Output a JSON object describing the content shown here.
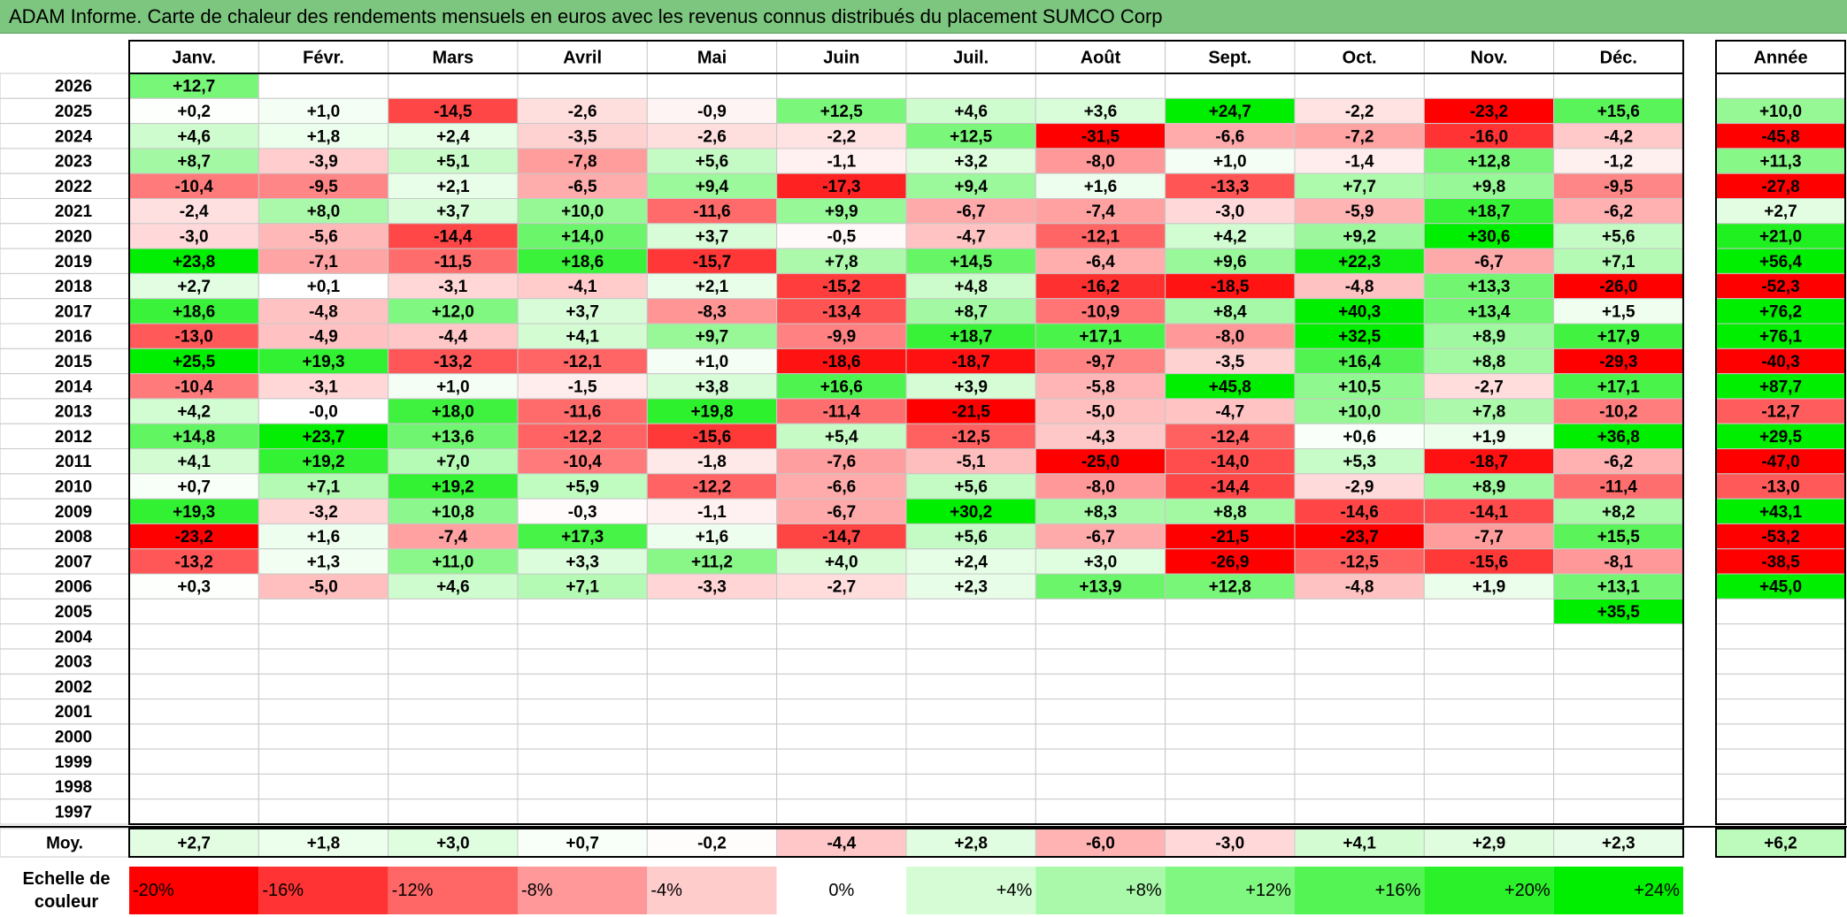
{
  "title": "ADAM Informe. Carte de chaleur des rendements mensuels en euros avec les revenus connus distribués du placement SUMCO Corp",
  "labels": {
    "year_column": "Année",
    "average_row": "Moy.",
    "scale_label_line1": "Echelle de",
    "scale_label_line2": "couleur"
  },
  "color_scale": {
    "min_color": "#ff0000",
    "mid_color": "#ffffff",
    "max_color": "#00ee00",
    "min_value": -20,
    "max_value": 24,
    "labels": [
      "-20%",
      "-16%",
      "-12%",
      "-8%",
      "-4%",
      "0%",
      "+4%",
      "+8%",
      "+12%",
      "+16%",
      "+20%",
      "+24%"
    ],
    "values": [
      -20,
      -16,
      -12,
      -8,
      -4,
      0,
      4,
      8,
      12,
      16,
      20,
      24
    ]
  },
  "chart_data": {
    "type": "heatmap",
    "title": "ADAM Informe. Carte de chaleur des rendements mensuels en euros avec les revenus connus distribués du placement SUMCO Corp",
    "columns": [
      "Janv.",
      "Févr.",
      "Mars",
      "Avril",
      "Mai",
      "Juin",
      "Juil.",
      "Août",
      "Sept.",
      "Oct.",
      "Nov.",
      "Déc."
    ],
    "rows": [
      {
        "year": "2026",
        "values": [
          "+12,7",
          "",
          "",
          "",
          "",
          "",
          "",
          "",
          "",
          "",
          "",
          ""
        ],
        "annual": ""
      },
      {
        "year": "2025",
        "values": [
          "+0,2",
          "+1,0",
          "-14,5",
          "-2,6",
          "-0,9",
          "+12,5",
          "+4,6",
          "+3,6",
          "+24,7",
          "-2,2",
          "-23,2",
          "+15,6"
        ],
        "annual": "+10,0"
      },
      {
        "year": "2024",
        "values": [
          "+4,6",
          "+1,8",
          "+2,4",
          "-3,5",
          "-2,6",
          "-2,2",
          "+12,5",
          "-31,5",
          "-6,6",
          "-7,2",
          "-16,0",
          "-4,2"
        ],
        "annual": "-45,8"
      },
      {
        "year": "2023",
        "values": [
          "+8,7",
          "-3,9",
          "+5,1",
          "-7,8",
          "+5,6",
          "-1,1",
          "+3,2",
          "-8,0",
          "+1,0",
          "-1,4",
          "+12,8",
          "-1,2"
        ],
        "annual": "+11,3"
      },
      {
        "year": "2022",
        "values": [
          "-10,4",
          "-9,5",
          "+2,1",
          "-6,5",
          "+9,4",
          "-17,3",
          "+9,4",
          "+1,6",
          "-13,3",
          "+7,7",
          "+9,8",
          "-9,5"
        ],
        "annual": "-27,8"
      },
      {
        "year": "2021",
        "values": [
          "-2,4",
          "+8,0",
          "+3,7",
          "+10,0",
          "-11,6",
          "+9,9",
          "-6,7",
          "-7,4",
          "-3,0",
          "-5,9",
          "+18,7",
          "-6,2"
        ],
        "annual": "+2,7"
      },
      {
        "year": "2020",
        "values": [
          "-3,0",
          "-5,6",
          "-14,4",
          "+14,0",
          "+3,7",
          "-0,5",
          "-4,7",
          "-12,1",
          "+4,2",
          "+9,2",
          "+30,6",
          "+5,6"
        ],
        "annual": "+21,0"
      },
      {
        "year": "2019",
        "values": [
          "+23,8",
          "-7,1",
          "-11,5",
          "+18,6",
          "-15,7",
          "+7,8",
          "+14,5",
          "-6,4",
          "+9,6",
          "+22,3",
          "-6,7",
          "+7,1"
        ],
        "annual": "+56,4"
      },
      {
        "year": "2018",
        "values": [
          "+2,7",
          "+0,1",
          "-3,1",
          "-4,1",
          "+2,1",
          "-15,2",
          "+4,8",
          "-16,2",
          "-18,5",
          "-4,8",
          "+13,3",
          "-26,0"
        ],
        "annual": "-52,3"
      },
      {
        "year": "2017",
        "values": [
          "+18,6",
          "-4,8",
          "+12,0",
          "+3,7",
          "-8,3",
          "-13,4",
          "+8,7",
          "-10,9",
          "+8,4",
          "+40,3",
          "+13,4",
          "+1,5"
        ],
        "annual": "+76,2"
      },
      {
        "year": "2016",
        "values": [
          "-13,0",
          "-4,9",
          "-4,4",
          "+4,1",
          "+9,7",
          "-9,9",
          "+18,7",
          "+17,1",
          "-8,0",
          "+32,5",
          "+8,9",
          "+17,9"
        ],
        "annual": "+76,1"
      },
      {
        "year": "2015",
        "values": [
          "+25,5",
          "+19,3",
          "-13,2",
          "-12,1",
          "+1,0",
          "-18,6",
          "-18,7",
          "-9,7",
          "-3,5",
          "+16,4",
          "+8,8",
          "-29,3"
        ],
        "annual": "-40,3"
      },
      {
        "year": "2014",
        "values": [
          "-10,4",
          "-3,1",
          "+1,0",
          "-1,5",
          "+3,8",
          "+16,6",
          "+3,9",
          "-5,8",
          "+45,8",
          "+10,5",
          "-2,7",
          "+17,1"
        ],
        "annual": "+87,7"
      },
      {
        "year": "2013",
        "values": [
          "+4,2",
          "-0,0",
          "+18,0",
          "-11,6",
          "+19,8",
          "-11,4",
          "-21,5",
          "-5,0",
          "-4,7",
          "+10,0",
          "+7,8",
          "-10,2"
        ],
        "annual": "-12,7"
      },
      {
        "year": "2012",
        "values": [
          "+14,8",
          "+23,7",
          "+13,6",
          "-12,2",
          "-15,6",
          "+5,4",
          "-12,5",
          "-4,3",
          "-12,4",
          "+0,6",
          "+1,9",
          "+36,8"
        ],
        "annual": "+29,5"
      },
      {
        "year": "2011",
        "values": [
          "+4,1",
          "+19,2",
          "+7,0",
          "-10,4",
          "-1,8",
          "-7,6",
          "-5,1",
          "-25,0",
          "-14,0",
          "+5,3",
          "-18,7",
          "-6,2"
        ],
        "annual": "-47,0"
      },
      {
        "year": "2010",
        "values": [
          "+0,7",
          "+7,1",
          "+19,2",
          "+5,9",
          "-12,2",
          "-6,6",
          "+5,6",
          "-8,0",
          "-14,4",
          "-2,9",
          "+8,9",
          "-11,4"
        ],
        "annual": "-13,0"
      },
      {
        "year": "2009",
        "values": [
          "+19,3",
          "-3,2",
          "+10,8",
          "-0,3",
          "-1,1",
          "-6,7",
          "+30,2",
          "+8,3",
          "+8,8",
          "-14,6",
          "-14,1",
          "+8,2"
        ],
        "annual": "+43,1"
      },
      {
        "year": "2008",
        "values": [
          "-23,2",
          "+1,6",
          "-7,4",
          "+17,3",
          "+1,6",
          "-14,7",
          "+5,6",
          "-6,7",
          "-21,5",
          "-23,7",
          "-7,7",
          "+15,5"
        ],
        "annual": "-53,2"
      },
      {
        "year": "2007",
        "values": [
          "-13,2",
          "+1,3",
          "+11,0",
          "+3,3",
          "+11,2",
          "+4,0",
          "+2,4",
          "+3,0",
          "-26,9",
          "-12,5",
          "-15,6",
          "-8,1"
        ],
        "annual": "-38,5"
      },
      {
        "year": "2006",
        "values": [
          "+0,3",
          "-5,0",
          "+4,6",
          "+7,1",
          "-3,3",
          "-2,7",
          "+2,3",
          "+13,9",
          "+12,8",
          "-4,8",
          "+1,9",
          "+13,1"
        ],
        "annual": "+45,0"
      },
      {
        "year": "2005",
        "values": [
          "",
          "",
          "",
          "",
          "",
          "",
          "",
          "",
          "",
          "",
          "",
          "+35,5"
        ],
        "annual": ""
      },
      {
        "year": "2004",
        "values": [
          "",
          "",
          "",
          "",
          "",
          "",
          "",
          "",
          "",
          "",
          "",
          ""
        ],
        "annual": ""
      },
      {
        "year": "2003",
        "values": [
          "",
          "",
          "",
          "",
          "",
          "",
          "",
          "",
          "",
          "",
          "",
          ""
        ],
        "annual": ""
      },
      {
        "year": "2002",
        "values": [
          "",
          "",
          "",
          "",
          "",
          "",
          "",
          "",
          "",
          "",
          "",
          ""
        ],
        "annual": ""
      },
      {
        "year": "2001",
        "values": [
          "",
          "",
          "",
          "",
          "",
          "",
          "",
          "",
          "",
          "",
          "",
          ""
        ],
        "annual": ""
      },
      {
        "year": "2000",
        "values": [
          "",
          "",
          "",
          "",
          "",
          "",
          "",
          "",
          "",
          "",
          "",
          ""
        ],
        "annual": ""
      },
      {
        "year": "1999",
        "values": [
          "",
          "",
          "",
          "",
          "",
          "",
          "",
          "",
          "",
          "",
          "",
          ""
        ],
        "annual": ""
      },
      {
        "year": "1998",
        "values": [
          "",
          "",
          "",
          "",
          "",
          "",
          "",
          "",
          "",
          "",
          "",
          ""
        ],
        "annual": ""
      },
      {
        "year": "1997",
        "values": [
          "",
          "",
          "",
          "",
          "",
          "",
          "",
          "",
          "",
          "",
          "",
          ""
        ],
        "annual": ""
      }
    ],
    "average": {
      "label": "Moy.",
      "values": [
        "+2,7",
        "+1,8",
        "+3,0",
        "+0,7",
        "-0,2",
        "-4,4",
        "+2,8",
        "-6,0",
        "-3,0",
        "+4,1",
        "+2,9",
        "+2,3"
      ],
      "annual": "+6,2"
    }
  }
}
